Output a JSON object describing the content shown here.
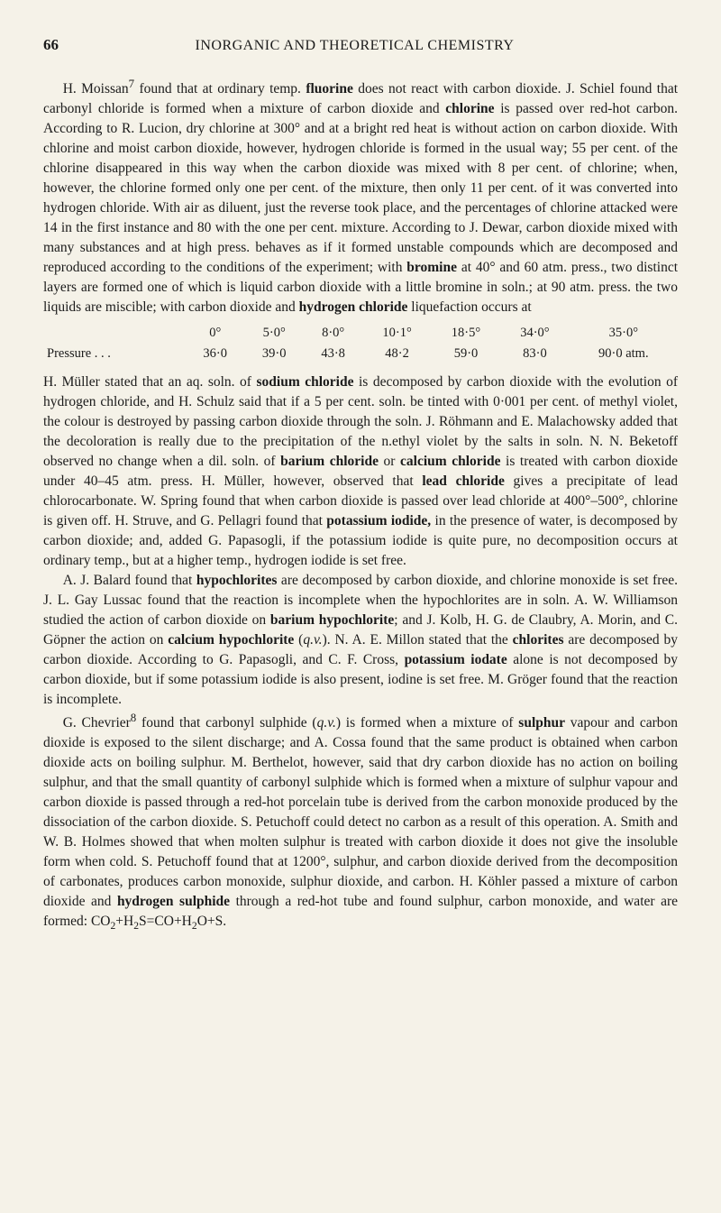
{
  "page": {
    "number": "66",
    "running_title": "INORGANIC AND THEORETICAL CHEMISTRY"
  },
  "para1": {
    "t1": "H. Moissan",
    "sup1": "7",
    "t2": " found that at ordinary temp. ",
    "b1": "fluorine",
    "t3": " does not react with carbon dioxide. J. Schiel found that carbonyl chloride is formed when a mixture of carbon dioxide and ",
    "b2": "chlorine",
    "t4": " is passed over red-hot carbon. According to R. Lucion, dry chlorine at 300° and at a bright red heat is without action on carbon dioxide. With chlorine and moist carbon dioxide, however, hydrogen chloride is formed in the usual way; 55 per cent. of the chlorine disappeared in this way when the carbon dioxide was mixed with 8 per cent. of chlorine; when, however, the chlorine formed only one per cent. of the mixture, then only 11 per cent. of it was converted into hydrogen chloride. With air as diluent, just the reverse took place, and the percentages of chlorine attacked were 14 in the first instance and 80 with the one per cent. mixture. According to J. Dewar, carbon dioxide mixed with many substances and at high press. behaves as if it formed unstable compounds which are decomposed and reproduced according to the conditions of the experiment; with ",
    "b3": "bromine",
    "t5": " at 40° and 60 atm. press., two distinct layers are formed one of which is liquid carbon dioxide with a little bromine in soln.; at 90 atm. press. the two liquids are miscible; with carbon dioxide and ",
    "b4": "hydrogen chloride",
    "t6": " liquefaction occurs at"
  },
  "table": {
    "row0": [
      "",
      "0°",
      "5·0°",
      "8·0°",
      "10·1°",
      "18·5°",
      "34·0°",
      "35·0°"
    ],
    "row1": [
      "Pressure  .   .   .",
      "36·0",
      "39·0",
      "43·8",
      "48·2",
      "59·0",
      "83·0",
      "90·0 atm."
    ]
  },
  "para2": {
    "t1": "H. Müller stated that an aq. soln. of ",
    "b1": "sodium chloride",
    "t2": " is decomposed by carbon dioxide with the evolution of hydrogen chloride, and H. Schulz said that if a 5 per cent. soln. be tinted with 0·001 per cent. of methyl violet, the colour is destroyed by passing carbon dioxide through the soln. J. Röhmann and E. Malachowsky added that the decoloration is really due to the precipitation of the n.ethyl violet by the salts in soln. N. N. Beketoff observed no change when a dil. soln. of ",
    "b2": "barium chloride",
    "t3": " or ",
    "b3": "calcium chloride",
    "t4": " is treated with carbon dioxide under 40–45 atm. press. H. Müller, however, observed that ",
    "b4": "lead chloride",
    "t5": " gives a precipitate of lead chlorocarbonate. W. Spring found that when carbon dioxide is passed over lead chloride at 400°–500°, chlorine is given off. H. Struve, and G. Pellagri found that ",
    "b5": "potassium iodide,",
    "t6": " in the presence of water, is decomposed by carbon dioxide; and, added G. Papasogli, if the potassium iodide is quite pure, no decomposition occurs at ordinary temp., but at a higher temp., hydrogen iodide is set free."
  },
  "para3": {
    "t1": "A. J. Balard found that ",
    "b1": "hypochlorites",
    "t2": " are decomposed by carbon dioxide, and chlorine monoxide is set free. J. L. Gay Lussac found that the reaction is incomplete when the hypochlorites are in soln. A. W. Williamson studied the action of carbon dioxide on ",
    "b2": "barium hypochlorite",
    "t3": "; and J. Kolb, H. G. de Claubry, A. Morin, and C. Göpner the action on ",
    "b3": "calcium hypochlorite",
    "t4": " (",
    "i1": "q.v.",
    "t5": "). N. A. E. Millon stated that the ",
    "b4": "chlorites",
    "t6": " are decomposed by carbon dioxide. According to G. Papasogli, and C. F. Cross, ",
    "b5": "potassium iodate",
    "t7": " alone is not decomposed by carbon dioxide, but if some potassium iodide is also present, iodine is set free. M. Gröger found that the reaction is incomplete."
  },
  "para4": {
    "t1": "G. Chevrier",
    "sup1": "8",
    "t2": " found that carbonyl sulphide (",
    "i1": "q.v.",
    "t3": ") is formed when a mixture of ",
    "b1": "sulphur",
    "t4": " vapour and carbon dioxide is exposed to the silent discharge; and A. Cossa found that the same product is obtained when carbon dioxide acts on boiling sulphur. M. Berthelot, however, said that dry carbon dioxide has no action on boiling sulphur, and that the small quantity of carbonyl sulphide which is formed when a mixture of sulphur vapour and carbon dioxide is passed through a red-hot porcelain tube is derived from the carbon monoxide produced by the dissociation of the carbon dioxide. S. Petuchoff could detect no carbon as a result of this operation. A. Smith and W. B. Holmes showed that when molten sulphur is treated with carbon dioxide it does not give the insoluble form when cold. S. Petuchoff found that at 1200°, sulphur, and carbon dioxide derived from the decomposition of carbonates, produces carbon monoxide, sulphur dioxide, and carbon. H. Köhler passed a mixture of carbon dioxide and ",
    "b2": "hydrogen sulphide",
    "t5": " through a red-hot tube and found sulphur, carbon monoxide, and water are formed:  CO",
    "sub1": "2",
    "t6": "+H",
    "sub2": "2",
    "t7": "S=CO+H",
    "sub3": "2",
    "t8": "O+S."
  }
}
